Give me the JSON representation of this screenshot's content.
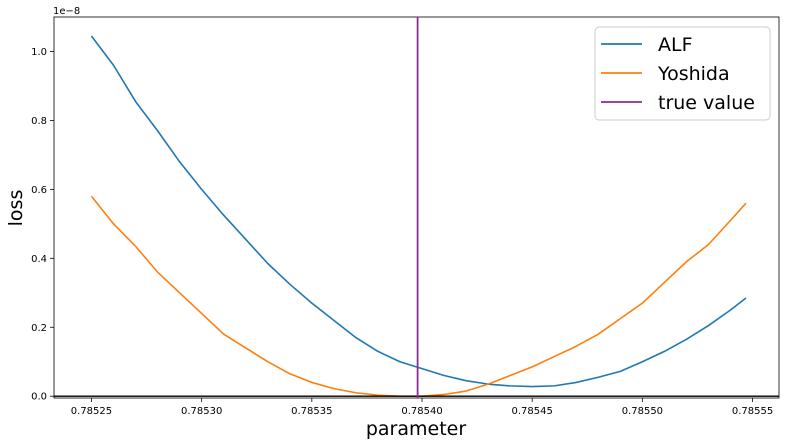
{
  "chart_data": {
    "type": "line",
    "xlabel": "parameter",
    "ylabel": "loss",
    "offset_text": "1e−8",
    "xlim": [
      0.785233,
      0.785562
    ],
    "ylim": [
      -0.0052,
      1.1
    ],
    "x_ticks": [
      {
        "value": 0.78525,
        "label": "0.78525"
      },
      {
        "value": 0.7853,
        "label": "0.78530"
      },
      {
        "value": 0.78535,
        "label": "0.78535"
      },
      {
        "value": 0.7854,
        "label": "0.78540"
      },
      {
        "value": 0.78545,
        "label": "0.78545"
      },
      {
        "value": 0.7855,
        "label": "0.78550"
      },
      {
        "value": 0.78555,
        "label": "0.78555"
      }
    ],
    "y_ticks": [
      {
        "value": 0.0,
        "label": "0.0"
      },
      {
        "value": 0.2,
        "label": "0.2"
      },
      {
        "value": 0.4,
        "label": "0.4"
      },
      {
        "value": 0.6,
        "label": "0.6"
      },
      {
        "value": 0.8,
        "label": "0.8"
      },
      {
        "value": 1.0,
        "label": "1.0"
      }
    ],
    "hline_y": 0.0,
    "vline": {
      "name": "true value",
      "x": 0.785398,
      "color": "#8c2d95"
    },
    "series": [
      {
        "name": "ALF",
        "color": "#1f77b4",
        "x": [
          0.78525,
          0.78526,
          0.78527,
          0.78528,
          0.78529,
          0.7853,
          0.78531,
          0.78532,
          0.78533,
          0.78534,
          0.78535,
          0.78536,
          0.78537,
          0.78538,
          0.78539,
          0.7854,
          0.78541,
          0.78542,
          0.78543,
          0.78544,
          0.78545,
          0.78546,
          0.78547,
          0.78548,
          0.78549,
          0.7855,
          0.78551,
          0.78552,
          0.78553,
          0.78554,
          0.785547
        ],
        "y": [
          1.045,
          0.96,
          0.855,
          0.77,
          0.68,
          0.6,
          0.525,
          0.455,
          0.385,
          0.325,
          0.27,
          0.22,
          0.17,
          0.13,
          0.1,
          0.08,
          0.06,
          0.045,
          0.035,
          0.03,
          0.028,
          0.03,
          0.04,
          0.055,
          0.072,
          0.1,
          0.13,
          0.165,
          0.205,
          0.25,
          0.285
        ]
      },
      {
        "name": "Yoshida",
        "color": "#ff7f0e",
        "x": [
          0.78525,
          0.78526,
          0.78527,
          0.78528,
          0.78529,
          0.7853,
          0.78531,
          0.78532,
          0.78533,
          0.78534,
          0.78535,
          0.78536,
          0.78537,
          0.78538,
          0.78539,
          0.7854,
          0.78541,
          0.78542,
          0.78543,
          0.78544,
          0.78545,
          0.78546,
          0.78547,
          0.78548,
          0.78549,
          0.7855,
          0.78551,
          0.78552,
          0.78553,
          0.78554,
          0.785547
        ],
        "y": [
          0.58,
          0.5,
          0.435,
          0.36,
          0.3,
          0.24,
          0.18,
          0.14,
          0.1,
          0.065,
          0.04,
          0.022,
          0.01,
          0.003,
          0.0,
          0.0,
          0.005,
          0.015,
          0.035,
          0.06,
          0.085,
          0.115,
          0.145,
          0.18,
          0.225,
          0.27,
          0.33,
          0.39,
          0.44,
          0.51,
          0.56
        ]
      }
    ],
    "legend": {
      "placement": "top-right",
      "entries": [
        {
          "label": "ALF",
          "color": "#1f77b4"
        },
        {
          "label": "Yoshida",
          "color": "#ff7f0e"
        },
        {
          "label": "true value",
          "color": "#8c2d95"
        }
      ]
    }
  }
}
